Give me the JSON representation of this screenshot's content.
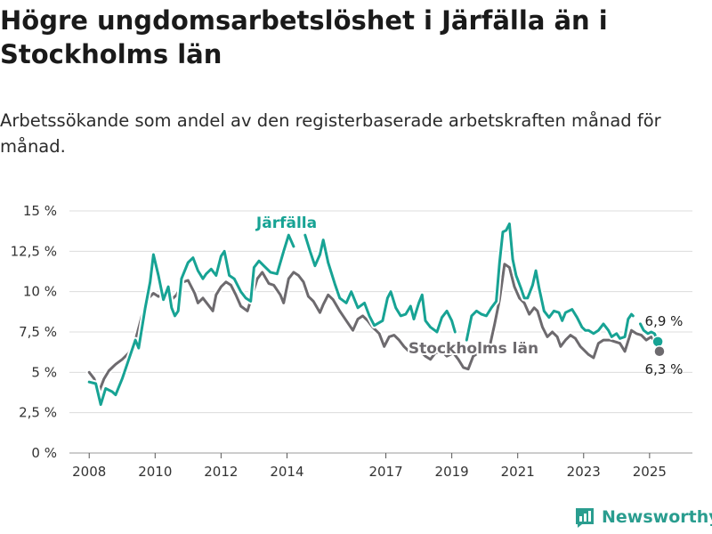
{
  "title": "Högre ungdomsarbetslöshet i Järfälla än i Stockholms län",
  "subtitle": "Arbetssökande som andel av den registerbaserade arbetskraften månad för månad.",
  "brand": "Newsworthy",
  "colors": {
    "jarfalla": "#17a394",
    "stockholm": "#6d6a6e",
    "grid": "#dcdcdc"
  },
  "chart_data": {
    "type": "line",
    "x_unit": "year",
    "xlim": [
      2007.4,
      2026.3
    ],
    "ylim": [
      0,
      15
    ],
    "y_ticks": [
      0,
      2.5,
      5,
      7.5,
      10,
      12.5,
      15
    ],
    "y_tick_labels": [
      "0 %",
      "2,5 %",
      "5 %",
      "7,5 %",
      "10 %",
      "12,5 %",
      "15 %"
    ],
    "x_ticks": [
      2008,
      2010,
      2012,
      2014,
      2017,
      2019,
      2021,
      2023,
      2025
    ],
    "x_tick_labels": [
      "2008",
      "2010",
      "2012",
      "2014",
      "2017",
      "2019",
      "2021",
      "2023",
      "2025"
    ],
    "grid": true,
    "series": [
      {
        "name": "Järfälla",
        "end_label": "6,9 %",
        "points": [
          [
            2008.0,
            4.4
          ],
          [
            2008.2,
            4.3
          ],
          [
            2008.35,
            3.0
          ],
          [
            2008.5,
            4.0
          ],
          [
            2008.7,
            3.8
          ],
          [
            2008.8,
            3.6
          ],
          [
            2009.0,
            4.6
          ],
          [
            2009.2,
            5.8
          ],
          [
            2009.4,
            7.0
          ],
          [
            2009.5,
            6.5
          ],
          [
            2009.7,
            9.0
          ],
          [
            2009.85,
            10.6
          ],
          [
            2009.95,
            12.3
          ],
          [
            2010.1,
            11.0
          ],
          [
            2010.25,
            9.5
          ],
          [
            2010.4,
            10.3
          ],
          [
            2010.5,
            9.0
          ],
          [
            2010.6,
            8.5
          ],
          [
            2010.7,
            8.8
          ],
          [
            2010.8,
            10.8
          ],
          [
            2011.0,
            11.8
          ],
          [
            2011.15,
            12.1
          ],
          [
            2011.3,
            11.3
          ],
          [
            2011.45,
            10.8
          ],
          [
            2011.55,
            11.1
          ],
          [
            2011.7,
            11.4
          ],
          [
            2011.85,
            11.0
          ],
          [
            2012.0,
            12.2
          ],
          [
            2012.1,
            12.5
          ],
          [
            2012.25,
            11.0
          ],
          [
            2012.4,
            10.8
          ],
          [
            2012.6,
            10.0
          ],
          [
            2012.75,
            9.6
          ],
          [
            2012.9,
            9.4
          ],
          [
            2013.0,
            11.5
          ],
          [
            2013.15,
            11.9
          ],
          [
            2013.3,
            11.6
          ],
          [
            2013.5,
            11.2
          ],
          [
            2013.7,
            11.1
          ],
          [
            2013.9,
            12.5
          ],
          [
            2014.05,
            13.5
          ],
          [
            2014.2,
            12.8
          ]
        ]
      },
      {
        "name": "Järfälla",
        "points": [
          [
            2014.55,
            13.5
          ],
          [
            2014.7,
            12.5
          ],
          [
            2014.85,
            11.6
          ],
          [
            2015.0,
            12.3
          ],
          [
            2015.1,
            13.2
          ],
          [
            2015.25,
            11.8
          ],
          [
            2015.45,
            10.5
          ],
          [
            2015.6,
            9.6
          ],
          [
            2015.8,
            9.3
          ],
          [
            2015.95,
            10.0
          ],
          [
            2016.15,
            9.0
          ],
          [
            2016.35,
            9.3
          ],
          [
            2016.5,
            8.5
          ],
          [
            2016.65,
            7.9
          ],
          [
            2016.9,
            8.2
          ],
          [
            2017.05,
            9.6
          ],
          [
            2017.15,
            10.0
          ],
          [
            2017.3,
            9.0
          ],
          [
            2017.45,
            8.5
          ],
          [
            2017.6,
            8.6
          ],
          [
            2017.75,
            9.1
          ],
          [
            2017.85,
            8.3
          ],
          [
            2018.0,
            9.3
          ],
          [
            2018.1,
            9.8
          ],
          [
            2018.2,
            8.2
          ],
          [
            2018.35,
            7.8
          ],
          [
            2018.55,
            7.5
          ],
          [
            2018.7,
            8.4
          ],
          [
            2018.85,
            8.8
          ],
          [
            2019.0,
            8.2
          ],
          [
            2019.1,
            7.5
          ]
        ]
      },
      {
        "name": "Järfälla",
        "points": [
          [
            2019.45,
            7.0
          ],
          [
            2019.6,
            8.5
          ],
          [
            2019.75,
            8.8
          ],
          [
            2019.9,
            8.6
          ],
          [
            2020.05,
            8.5
          ],
          [
            2020.2,
            9.0
          ],
          [
            2020.35,
            9.4
          ],
          [
            2020.45,
            11.8
          ],
          [
            2020.55,
            13.7
          ],
          [
            2020.65,
            13.8
          ],
          [
            2020.75,
            14.2
          ],
          [
            2020.85,
            12.0
          ],
          [
            2020.95,
            11.0
          ],
          [
            2021.1,
            10.2
          ],
          [
            2021.2,
            9.6
          ],
          [
            2021.3,
            9.6
          ],
          [
            2021.45,
            10.4
          ],
          [
            2021.55,
            11.3
          ],
          [
            2021.65,
            10.2
          ],
          [
            2021.8,
            8.8
          ],
          [
            2021.95,
            8.4
          ],
          [
            2022.1,
            8.8
          ],
          [
            2022.25,
            8.7
          ],
          [
            2022.35,
            8.2
          ],
          [
            2022.45,
            8.7
          ],
          [
            2022.65,
            8.9
          ],
          [
            2022.8,
            8.4
          ],
          [
            2022.95,
            7.8
          ],
          [
            2023.05,
            7.6
          ],
          [
            2023.15,
            7.6
          ],
          [
            2023.3,
            7.4
          ],
          [
            2023.45,
            7.6
          ],
          [
            2023.6,
            8.0
          ],
          [
            2023.75,
            7.6
          ],
          [
            2023.85,
            7.2
          ],
          [
            2024.0,
            7.4
          ],
          [
            2024.1,
            7.1
          ],
          [
            2024.25,
            7.2
          ],
          [
            2024.35,
            8.3
          ],
          [
            2024.45,
            8.6
          ],
          [
            2024.5,
            8.5
          ]
        ]
      },
      {
        "name": "Järfälla",
        "points": [
          [
            2024.72,
            8.0
          ],
          [
            2024.82,
            7.6
          ],
          [
            2024.95,
            7.4
          ],
          [
            2025.05,
            7.5
          ],
          [
            2025.15,
            7.4
          ],
          [
            2025.25,
            6.9
          ]
        ]
      },
      {
        "name": "Stockholms län",
        "end_label": "6,3 %",
        "points": [
          [
            2008.0,
            5.0
          ],
          [
            2008.15,
            4.6
          ],
          [
            2008.3,
            3.8
          ],
          [
            2008.45,
            4.6
          ],
          [
            2008.6,
            5.1
          ],
          [
            2008.8,
            5.5
          ],
          [
            2009.0,
            5.8
          ],
          [
            2009.2,
            6.2
          ],
          [
            2009.4,
            7.0
          ],
          [
            2009.6,
            8.5
          ],
          [
            2009.8,
            9.6
          ],
          [
            2009.95,
            9.9
          ],
          [
            2010.1,
            9.7
          ],
          [
            2010.3,
            9.9
          ],
          [
            2010.5,
            9.5
          ],
          [
            2010.65,
            9.8
          ],
          [
            2010.85,
            10.6
          ],
          [
            2011.0,
            10.7
          ],
          [
            2011.2,
            9.9
          ],
          [
            2011.3,
            9.3
          ],
          [
            2011.45,
            9.6
          ],
          [
            2011.6,
            9.2
          ],
          [
            2011.75,
            8.8
          ],
          [
            2011.85,
            9.8
          ],
          [
            2012.0,
            10.3
          ],
          [
            2012.15,
            10.6
          ],
          [
            2012.3,
            10.4
          ],
          [
            2012.45,
            9.8
          ],
          [
            2012.6,
            9.1
          ],
          [
            2012.8,
            8.8
          ],
          [
            2012.95,
            9.8
          ],
          [
            2013.1,
            10.8
          ],
          [
            2013.25,
            11.2
          ],
          [
            2013.45,
            10.5
          ],
          [
            2013.6,
            10.4
          ],
          [
            2013.8,
            9.8
          ],
          [
            2013.9,
            9.3
          ],
          [
            2014.05,
            10.8
          ],
          [
            2014.2,
            11.2
          ],
          [
            2014.35,
            11.0
          ],
          [
            2014.5,
            10.6
          ],
          [
            2014.65,
            9.7
          ],
          [
            2014.8,
            9.4
          ],
          [
            2015.0,
            8.7
          ],
          [
            2015.1,
            9.2
          ],
          [
            2015.25,
            9.8
          ],
          [
            2015.4,
            9.5
          ],
          [
            2015.6,
            8.8
          ],
          [
            2015.8,
            8.2
          ],
          [
            2016.0,
            7.6
          ],
          [
            2016.15,
            8.3
          ],
          [
            2016.3,
            8.5
          ],
          [
            2016.45,
            8.2
          ],
          [
            2016.6,
            7.8
          ],
          [
            2016.8,
            7.4
          ],
          [
            2016.95,
            6.6
          ],
          [
            2017.1,
            7.2
          ],
          [
            2017.25,
            7.3
          ],
          [
            2017.4,
            7.0
          ],
          [
            2017.55,
            6.6
          ],
          [
            2017.7,
            6.3
          ],
          [
            2017.85,
            6.6
          ],
          [
            2018.0,
            6.4
          ],
          [
            2018.2,
            6.0
          ],
          [
            2018.35,
            5.8
          ],
          [
            2018.5,
            6.2
          ],
          [
            2018.7,
            6.3
          ],
          [
            2018.85,
            6.0
          ],
          [
            2019.05,
            6.2
          ],
          [
            2019.2,
            5.8
          ],
          [
            2019.35,
            5.3
          ],
          [
            2019.5,
            5.2
          ],
          [
            2019.65,
            6.0
          ],
          [
            2019.8,
            6.2
          ],
          [
            2020.0,
            6.4
          ],
          [
            2020.15,
            6.6
          ],
          [
            2020.3,
            8.0
          ],
          [
            2020.45,
            9.5
          ],
          [
            2020.6,
            11.7
          ],
          [
            2020.75,
            11.5
          ],
          [
            2020.9,
            10.3
          ],
          [
            2021.05,
            9.6
          ],
          [
            2021.2,
            9.3
          ],
          [
            2021.35,
            8.6
          ],
          [
            2021.5,
            9.0
          ],
          [
            2021.6,
            8.8
          ],
          [
            2021.75,
            7.8
          ],
          [
            2021.9,
            7.2
          ],
          [
            2022.05,
            7.5
          ],
          [
            2022.2,
            7.2
          ],
          [
            2022.3,
            6.6
          ],
          [
            2022.45,
            7.0
          ],
          [
            2022.6,
            7.3
          ],
          [
            2022.75,
            7.1
          ],
          [
            2022.9,
            6.6
          ],
          [
            2023.0,
            6.4
          ],
          [
            2023.15,
            6.1
          ],
          [
            2023.3,
            5.9
          ],
          [
            2023.45,
            6.8
          ],
          [
            2023.6,
            7.0
          ],
          [
            2023.8,
            7.0
          ],
          [
            2023.95,
            6.9
          ],
          [
            2024.1,
            6.8
          ],
          [
            2024.25,
            6.3
          ],
          [
            2024.45,
            7.6
          ],
          [
            2024.6,
            7.4
          ],
          [
            2024.75,
            7.3
          ],
          [
            2024.9,
            7.0
          ],
          [
            2025.05,
            7.2
          ],
          [
            2025.2,
            6.8
          ],
          [
            2025.3,
            6.3
          ]
        ]
      }
    ],
    "annotations": [
      {
        "text": "Järfälla",
        "series": "Järfälla"
      },
      {
        "text": "Stockholms län",
        "series": "Stockholms län"
      },
      {
        "text": "6,9 %",
        "series": "Järfälla"
      },
      {
        "text": "6,3 %",
        "series": "Stockholms län"
      }
    ]
  }
}
